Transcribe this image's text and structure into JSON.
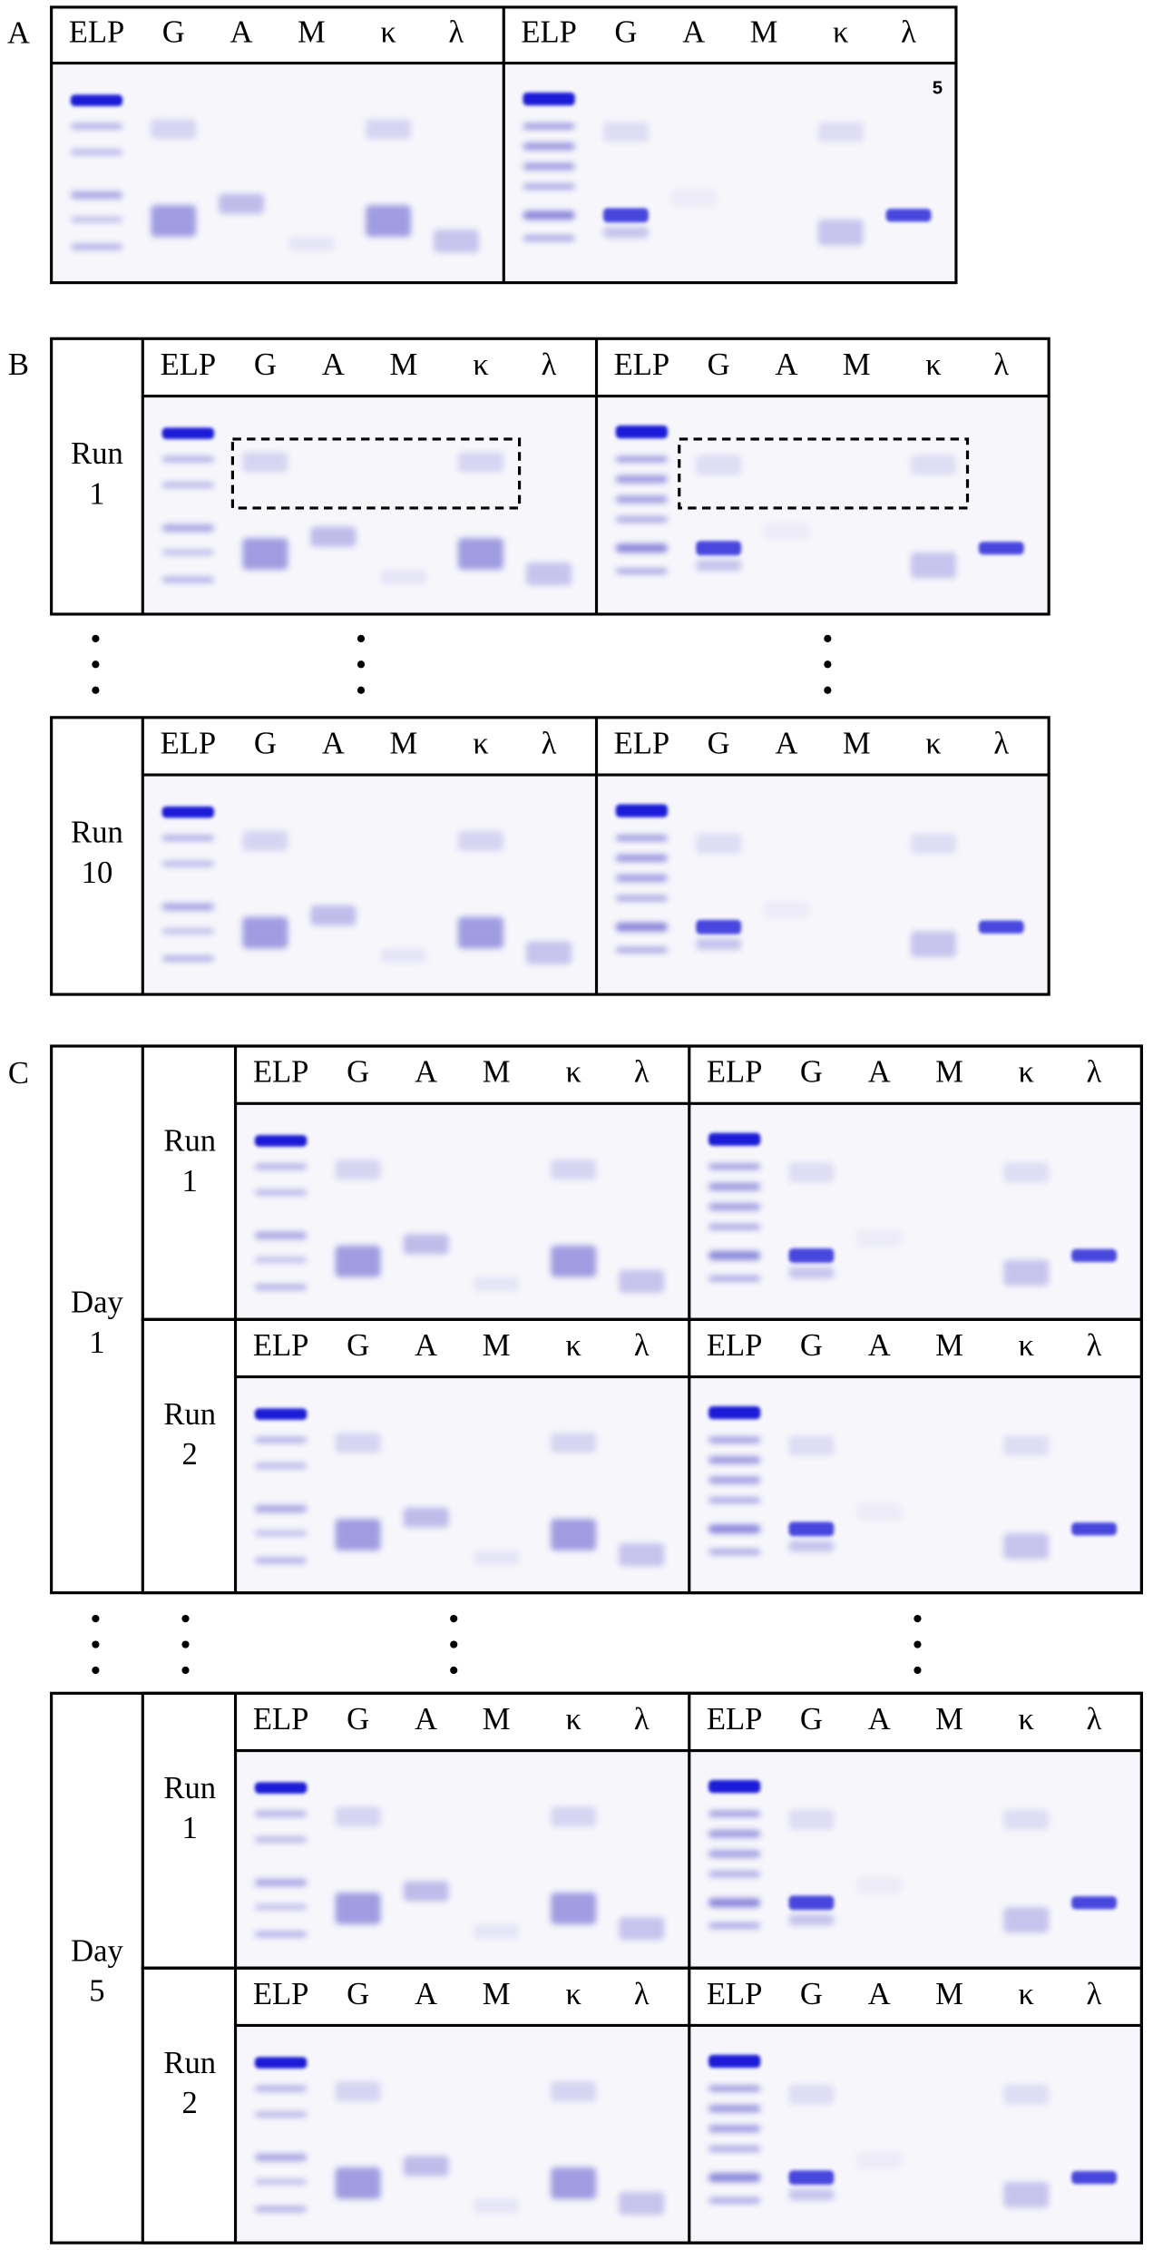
{
  "lane_labels": [
    "ELP",
    "G",
    "A",
    "M",
    "κ",
    "λ"
  ],
  "panel_a": {
    "label": "A",
    "corner_mark": "5"
  },
  "panel_b": {
    "label": "B",
    "runs": [
      "Run 1",
      "Run 10"
    ]
  },
  "panel_c": {
    "label": "C",
    "days": [
      {
        "label": "Day 1",
        "runs": [
          "Run 1",
          "Run 2"
        ]
      },
      {
        "label": "Day 5",
        "runs": [
          "Run 1",
          "Run 2"
        ]
      }
    ]
  }
}
